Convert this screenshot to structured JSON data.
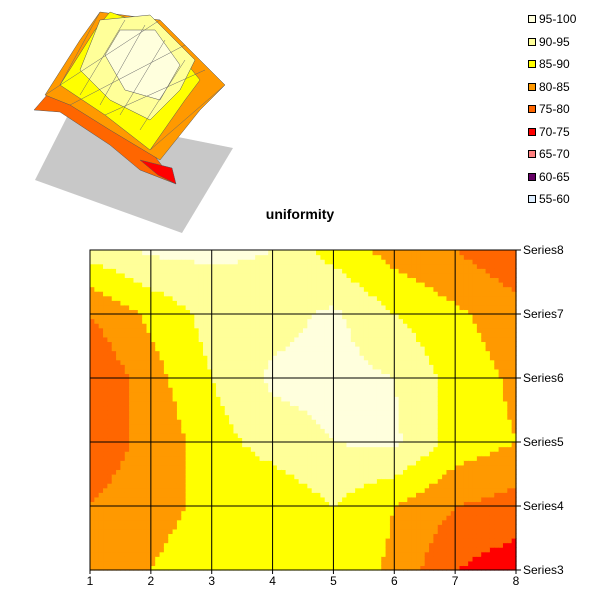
{
  "chart_data": {
    "type": "heatmap",
    "subtype": "contour",
    "title": "uniformity",
    "x": [
      1,
      2,
      3,
      4,
      5,
      6,
      7,
      8
    ],
    "y_categories": [
      "Series3",
      "Series4",
      "Series5",
      "Series6",
      "Series7",
      "Series8"
    ],
    "values": [
      [
        82,
        85,
        90,
        90,
        88,
        84,
        75,
        72
      ],
      [
        80,
        82,
        87,
        86,
        90,
        85,
        80,
        78
      ],
      [
        78,
        81,
        88,
        92,
        95,
        96,
        88,
        85
      ],
      [
        75,
        83,
        90,
        96,
        97,
        95,
        88,
        84
      ],
      [
        80,
        86,
        92,
        93,
        96,
        90,
        86,
        82
      ],
      [
        92,
        96,
        96,
        95,
        88,
        83,
        80,
        76
      ]
    ],
    "bands": [
      {
        "label": "95-100",
        "min": 95,
        "max": 100,
        "color": "#FFFFDD"
      },
      {
        "label": "90-95",
        "min": 90,
        "max": 95,
        "color": "#FFFF99"
      },
      {
        "label": "85-90",
        "min": 85,
        "max": 90,
        "color": "#FFFF00"
      },
      {
        "label": "80-85",
        "min": 80,
        "max": 85,
        "color": "#FF9900"
      },
      {
        "label": "75-80",
        "min": 75,
        "max": 80,
        "color": "#FF6600"
      },
      {
        "label": "70-75",
        "min": 70,
        "max": 75,
        "color": "#FF0000"
      },
      {
        "label": "65-70",
        "min": 65,
        "max": 70,
        "color": "#FF8080"
      },
      {
        "label": "60-65",
        "min": 60,
        "max": 65,
        "color": "#660066"
      },
      {
        "label": "55-60",
        "min": 55,
        "max": 60,
        "color": "#DDEEFF"
      }
    ],
    "legend_position": "top-right",
    "grid": true,
    "thumbnail_3d_surface": true
  }
}
